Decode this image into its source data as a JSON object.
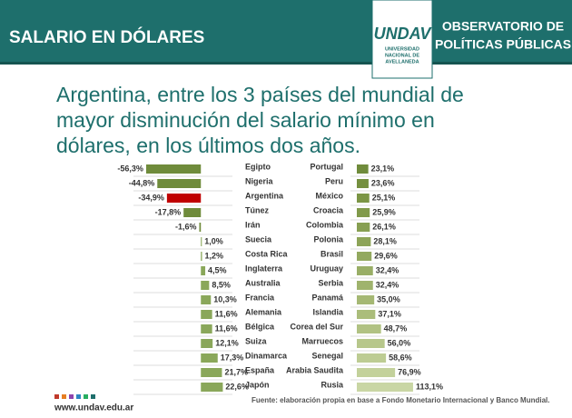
{
  "header": {
    "section": "SALARIO EN DÓLARES",
    "logo": "UNDAV",
    "university": [
      "UNIVERSIDAD",
      "NACIONAL DE",
      "AVELLANEDA"
    ],
    "observatory": [
      "OBSERVATORIO DE",
      "POLÍTICAS PÚBLICAS"
    ]
  },
  "title_lines": [
    "Argentina, entre los 3 países del mundial de",
    "mayor disminución del salario mínimo en",
    "dólares, en los últimos dos años."
  ],
  "highlight_color": "#c00000",
  "chart_data": [
    {
      "type": "bar",
      "orientation": "horizontal",
      "categories": [
        "Egipto",
        "Nigeria",
        "Argentina",
        "Túnez",
        "Irán",
        "Suecia",
        "Costa Rica",
        "Inglaterra",
        "Australia",
        "Francia",
        "Alemania",
        "Bélgica",
        "Suiza",
        "Dinamarca",
        "España",
        "Japón"
      ],
      "values": [
        -56.3,
        -44.8,
        -34.9,
        -17.8,
        -1.6,
        1.0,
        1.2,
        4.5,
        8.5,
        10.3,
        11.6,
        11.6,
        12.1,
        17.3,
        21.7,
        22.6
      ],
      "value_labels": [
        "-56,3%",
        "-44,8%",
        "-34,9%",
        "-17,8%",
        "-1,6%",
        "1,0%",
        "1,2%",
        "4,5%",
        "8,5%",
        "10,3%",
        "11,6%",
        "11,6%",
        "12,1%",
        "17,3%",
        "21,7%",
        "22,6%"
      ],
      "colors": [
        "#6f8b3b",
        "#6f8b3b",
        "#c00000",
        "#6f8b3b",
        "#6f8b3b",
        "#8aa75a",
        "#8aa75a",
        "#8aa75a",
        "#8aa75a",
        "#8aa75a",
        "#8aa75a",
        "#8aa75a",
        "#8aa75a",
        "#8aa75a",
        "#8aa75a",
        "#8aa75a"
      ],
      "xlim": [
        -60,
        25
      ]
    },
    {
      "type": "bar",
      "orientation": "horizontal",
      "categories": [
        "Portugal",
        "Peru",
        "México",
        "Croacia",
        "Colombia",
        "Polonia",
        "Brasil",
        "Uruguay",
        "Serbia",
        "Panamá",
        "Islandia",
        "Corea del Sur",
        "Marruecos",
        "Senegal",
        "Arabia Saudita",
        "Rusia"
      ],
      "values": [
        23.1,
        23.6,
        25.1,
        25.9,
        26.1,
        28.1,
        29.6,
        32.4,
        32.4,
        35.0,
        37.1,
        48.7,
        56.0,
        58.6,
        76.9,
        113.1
      ],
      "value_labels": [
        "23,1%",
        "23,6%",
        "25,1%",
        "25,9%",
        "26,1%",
        "28,1%",
        "29,6%",
        "32,4%",
        "32,4%",
        "35,0%",
        "37,1%",
        "48,7%",
        "56,0%",
        "58,6%",
        "76,9%",
        "113,1%"
      ],
      "colors": [
        "#6f8b3b",
        "#75903f",
        "#7b9545",
        "#819a4b",
        "#879f52",
        "#8da458",
        "#93a95f",
        "#99ae66",
        "#9fb36d",
        "#a5b874",
        "#abbd7b",
        "#b1c283",
        "#b7c78b",
        "#bdcc93",
        "#c3d19b",
        "#c9d6a4"
      ],
      "xlim": [
        0,
        115
      ]
    }
  ],
  "footer": {
    "url": "www.undav.edu.ar",
    "source": "Fuente: elaboración propia en base a Fondo Monetario Internacional y Banco Mundial."
  }
}
